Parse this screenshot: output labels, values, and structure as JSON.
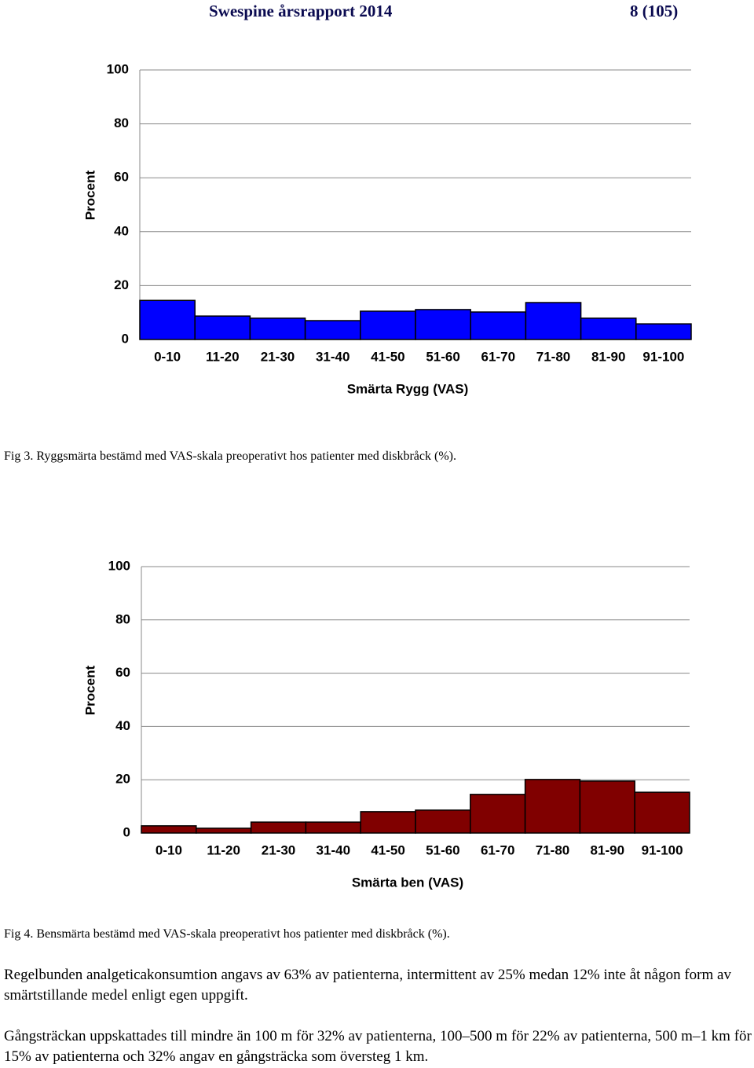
{
  "header": {
    "title": "Swespine årsrapport 2014",
    "page": "8 (105)"
  },
  "chart_data": [
    {
      "type": "bar",
      "xlabel": "Smärta Rygg (VAS)",
      "ylabel": "Procent",
      "categories": [
        "0-10",
        "11-20",
        "21-30",
        "31-40",
        "41-50",
        "51-60",
        "61-70",
        "71-80",
        "81-90",
        "91-100"
      ],
      "values": [
        14.5,
        8.7,
        7.9,
        7.0,
        10.5,
        11.1,
        10.2,
        13.7,
        7.9,
        5.8
      ],
      "color": "#0000ff",
      "ylim": [
        0,
        100
      ],
      "yticks": [
        0,
        20,
        40,
        60,
        80,
        100
      ],
      "grid": true
    },
    {
      "type": "bar",
      "xlabel": "Smärta ben (VAS)",
      "ylabel": "Procent",
      "categories": [
        "0-10",
        "11-20",
        "21-30",
        "31-40",
        "41-50",
        "51-60",
        "61-70",
        "71-80",
        "81-90",
        "91-100"
      ],
      "values": [
        2.7,
        1.8,
        4.1,
        4.1,
        8.0,
        8.6,
        14.5,
        20.1,
        19.5,
        15.3
      ],
      "color": "#800000",
      "ylim": [
        0,
        100
      ],
      "yticks": [
        0,
        20,
        40,
        60,
        80,
        100
      ],
      "grid": true
    }
  ],
  "captions": [
    "Fig 3. Ryggsmärta bestämd med VAS-skala preoperativt hos patienter med diskbråck (%).",
    "Fig 4. Bensmärta bestämd med VAS-skala preoperativt hos patienter med diskbråck (%)."
  ],
  "paragraphs": [
    "Regelbunden analgeticakonsumtion angavs av 63% av patienterna, intermittent av 25% medan 12% inte åt någon form av smärtstillande medel enligt egen uppgift.",
    "Gångsträckan uppskattades till mindre än 100 m för 32% av patienterna, 100–500 m för 22% av patienterna, 500 m–1 km för 15% av patienterna och 32% angav en gångsträcka som översteg 1 km."
  ]
}
